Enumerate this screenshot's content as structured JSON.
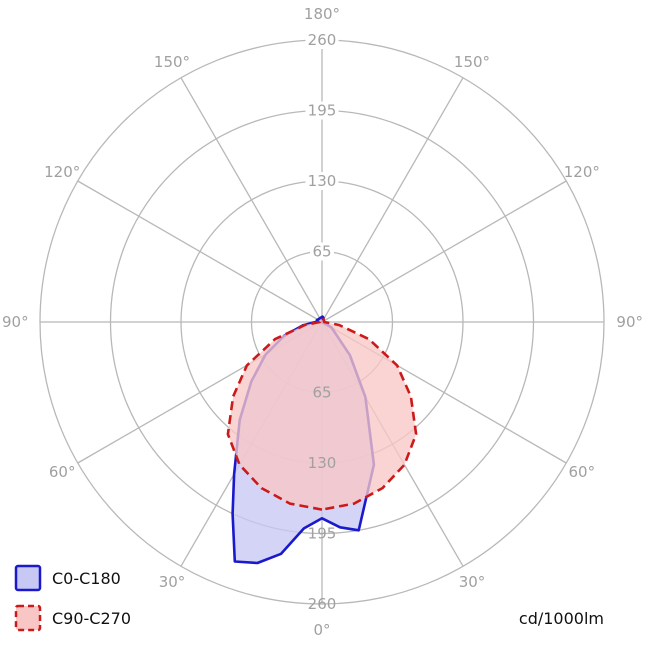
{
  "chart_data": {
    "type": "polar",
    "unit": "cd/1000lm",
    "radial_ticks": [
      "65",
      "130",
      "195",
      "260"
    ],
    "r_max": 260,
    "angle_labels": {
      "a0": "0°",
      "a30_left": "30°",
      "a30_right": "30°",
      "a60_left": "60°",
      "a60_right": "60°",
      "a90_left": "90°",
      "a90_right": "90°",
      "a120_left": "120°",
      "a120_right": "120°",
      "a150_left": "150°",
      "a150_right": "150°",
      "a180": "180°"
    },
    "angle_ticks": [
      "0°",
      "30°",
      "60°",
      "90°",
      "120°",
      "150°",
      "180°"
    ],
    "series": [
      {
        "name": "C0-C180",
        "color": "#1a1acc",
        "fill": "#c8c8f5",
        "line_style": "solid",
        "left_points": [
          [
            0,
            181
          ],
          [
            5,
            191
          ],
          [
            10,
            217
          ],
          [
            15,
            230
          ],
          [
            20,
            235
          ],
          [
            25,
            195
          ],
          [
            30,
            162
          ],
          [
            40,
            118
          ],
          [
            50,
            85
          ],
          [
            60,
            60
          ],
          [
            70,
            37
          ],
          [
            80,
            18
          ],
          [
            90,
            6
          ],
          [
            100,
            4
          ],
          [
            110,
            5
          ]
        ],
        "right_points": [
          [
            0,
            181
          ],
          [
            5,
            190
          ],
          [
            10,
            195
          ],
          [
            20,
            140
          ],
          [
            30,
            80
          ],
          [
            40,
            40
          ],
          [
            60,
            10
          ],
          [
            90,
            0
          ],
          [
            160,
            4
          ],
          [
            175,
            5
          ]
        ]
      },
      {
        "name": "C90-C270",
        "color": "#cc1a1a",
        "fill": "#f9c6c6",
        "line_style": "dashed",
        "left_points": [
          [
            0,
            173
          ],
          [
            10,
            170
          ],
          [
            20,
            163
          ],
          [
            30,
            152
          ],
          [
            40,
            135
          ],
          [
            50,
            107
          ],
          [
            60,
            80
          ],
          [
            70,
            46
          ],
          [
            80,
            16
          ],
          [
            90,
            2
          ],
          [
            150,
            3
          ],
          [
            170,
            2
          ]
        ],
        "right_points": [
          [
            0,
            173
          ],
          [
            10,
            170
          ],
          [
            20,
            163
          ],
          [
            30,
            152
          ],
          [
            40,
            135
          ],
          [
            50,
            107
          ],
          [
            60,
            80
          ],
          [
            70,
            46
          ],
          [
            80,
            16
          ],
          [
            90,
            2
          ],
          [
            150,
            3
          ],
          [
            170,
            2
          ]
        ]
      }
    ]
  }
}
